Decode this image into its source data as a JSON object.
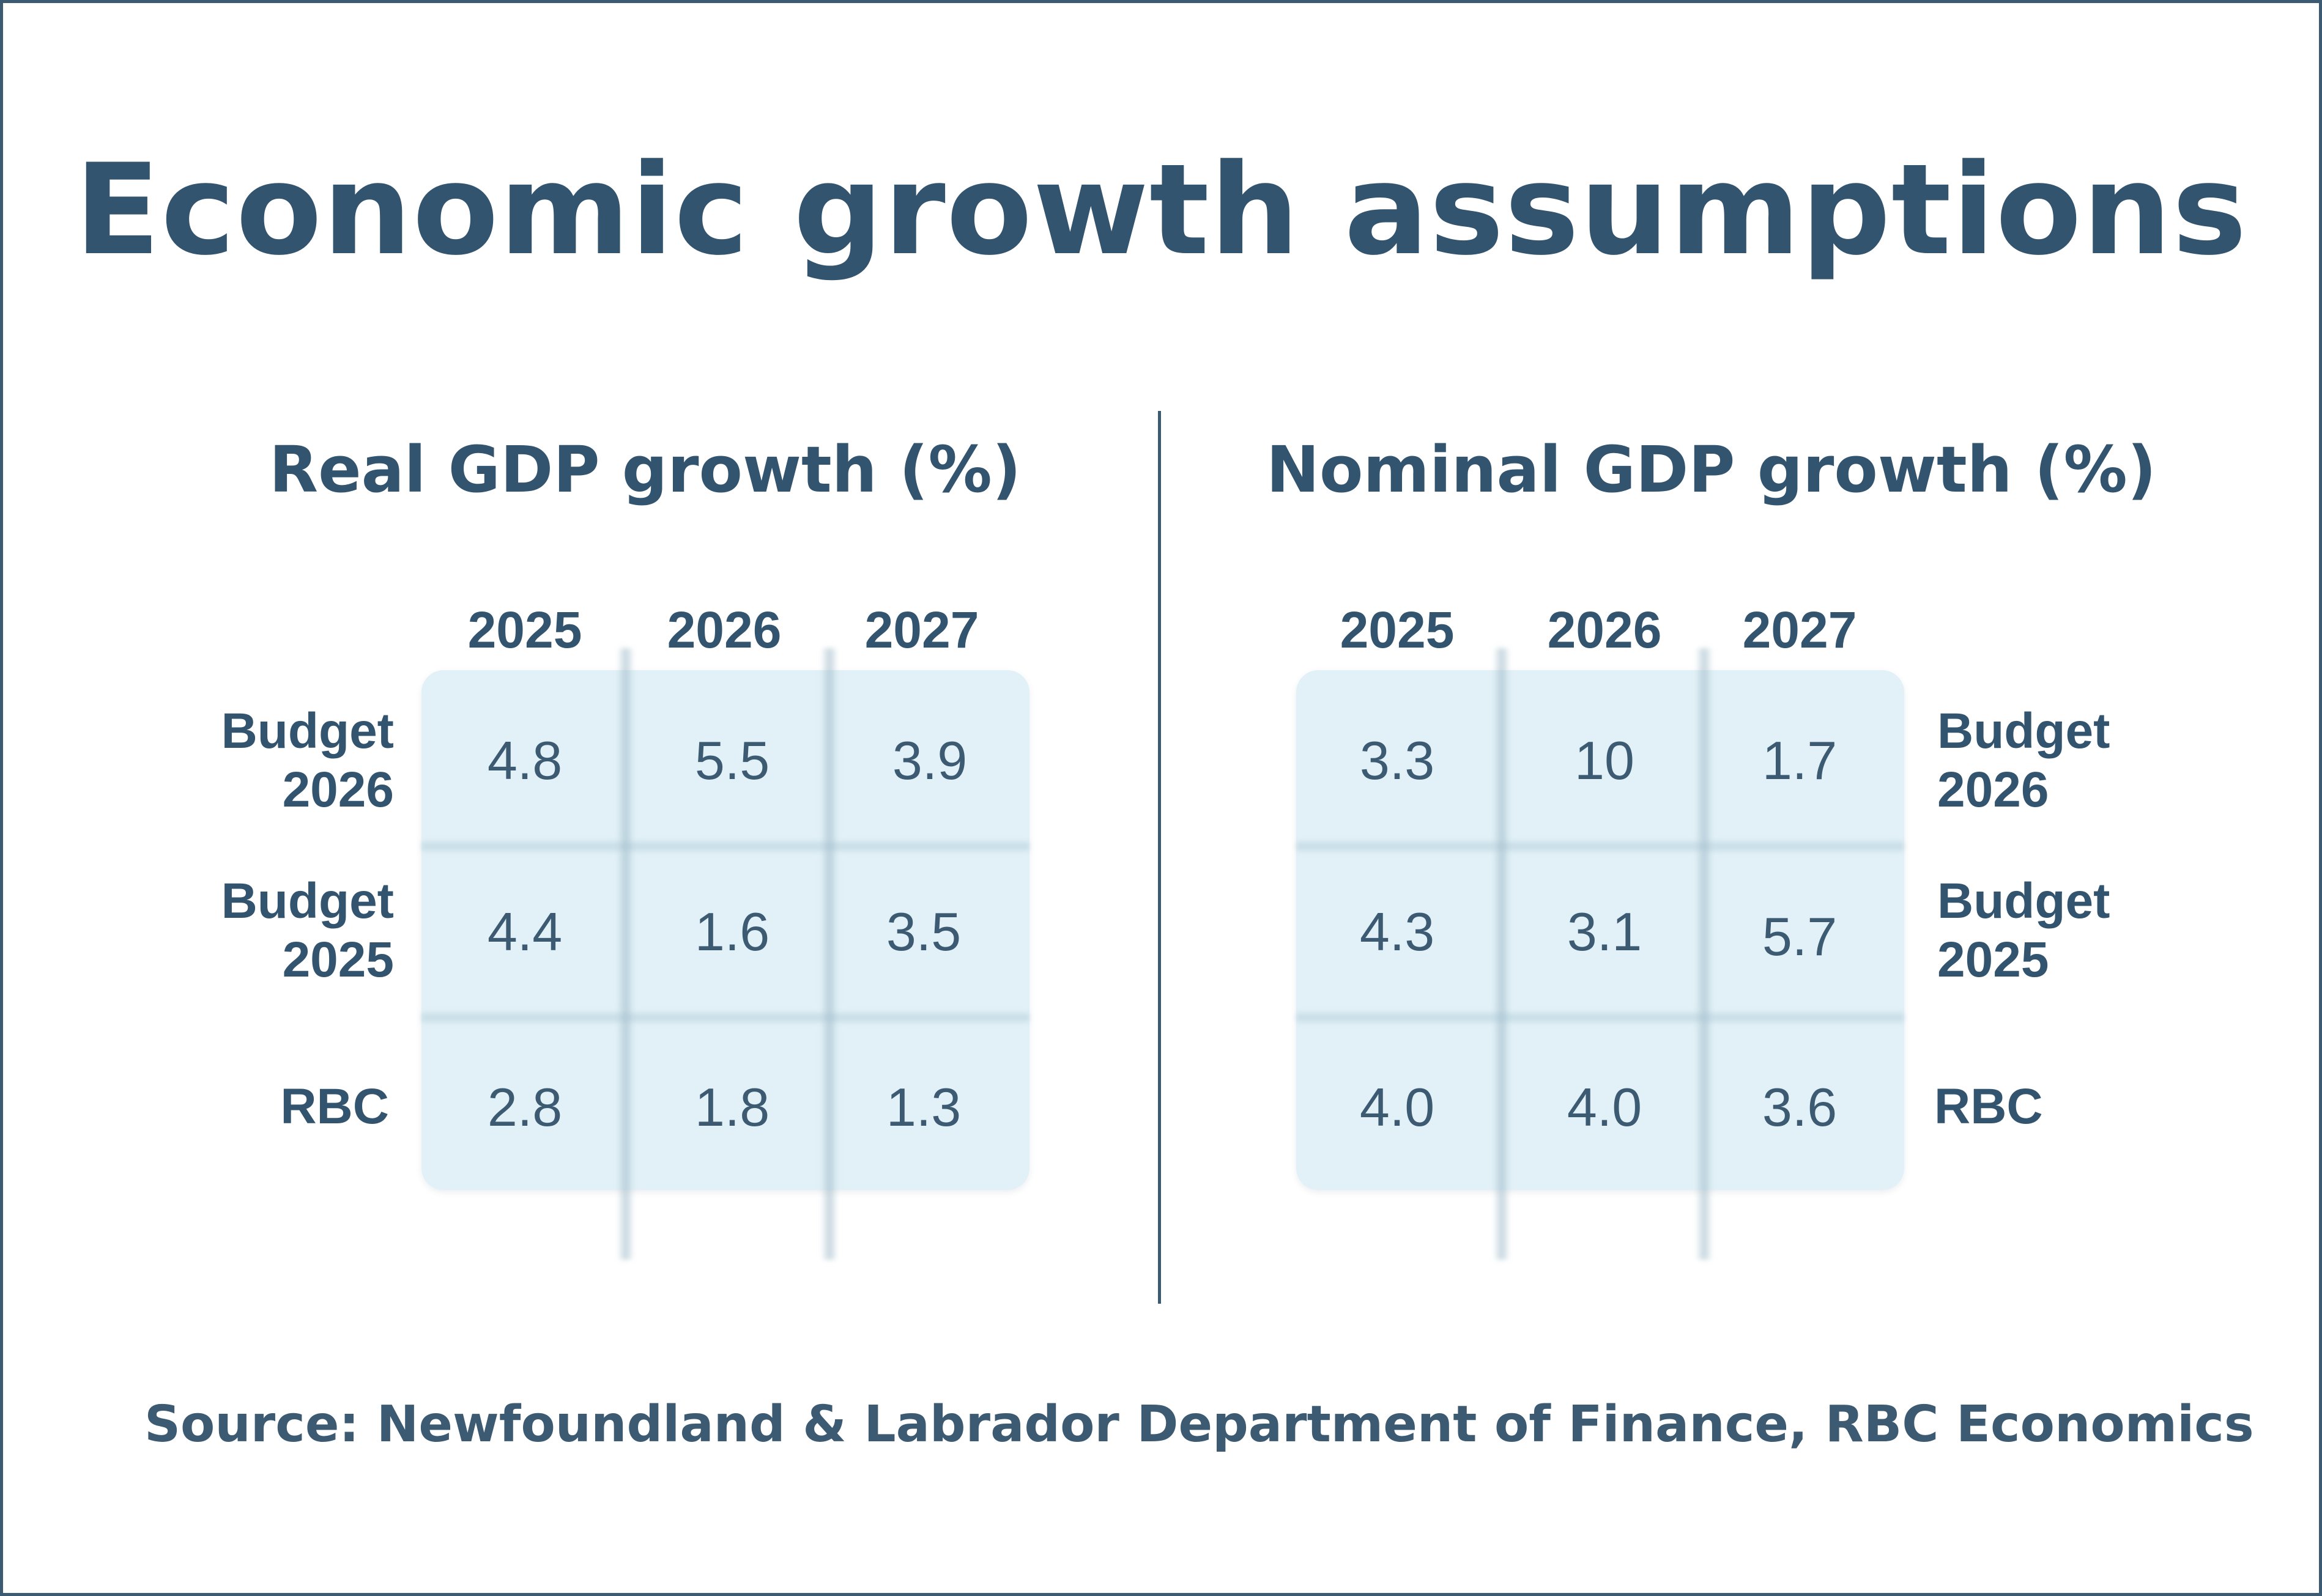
{
  "title": "Economic growth assumptions",
  "source": "Source: Newfoundland & Labrador Department of Finance, RBC Economics",
  "colors": {
    "text": "#33546f",
    "cell_bg": "#e2f1f7",
    "border": "#3c5a72"
  },
  "chart_data": [
    {
      "type": "table",
      "title": "Real GDP growth (%)",
      "columns": [
        "2025",
        "2026",
        "2027"
      ],
      "rows": [
        {
          "label_line1": "Budget",
          "label_line2": "2026",
          "values": [
            "4.8",
            "5.5",
            "3.9"
          ]
        },
        {
          "label_line1": "Budget",
          "label_line2": "2025",
          "values": [
            "4.4",
            "1.6",
            "3.5"
          ]
        },
        {
          "label_line1": "RBC",
          "label_line2": "",
          "values": [
            "2.8",
            "1.8",
            "1.3"
          ]
        }
      ]
    },
    {
      "type": "table",
      "title": "Nominal GDP growth (%)",
      "columns": [
        "2025",
        "2026",
        "2027"
      ],
      "rows": [
        {
          "label_line1": "Budget",
          "label_line2": "2026",
          "values": [
            "3.3",
            "10",
            "1.7"
          ]
        },
        {
          "label_line1": "Budget",
          "label_line2": "2025",
          "values": [
            "4.3",
            "3.1",
            "5.7"
          ]
        },
        {
          "label_line1": "RBC",
          "label_line2": "",
          "values": [
            "4.0",
            "4.0",
            "3.6"
          ]
        }
      ]
    }
  ]
}
